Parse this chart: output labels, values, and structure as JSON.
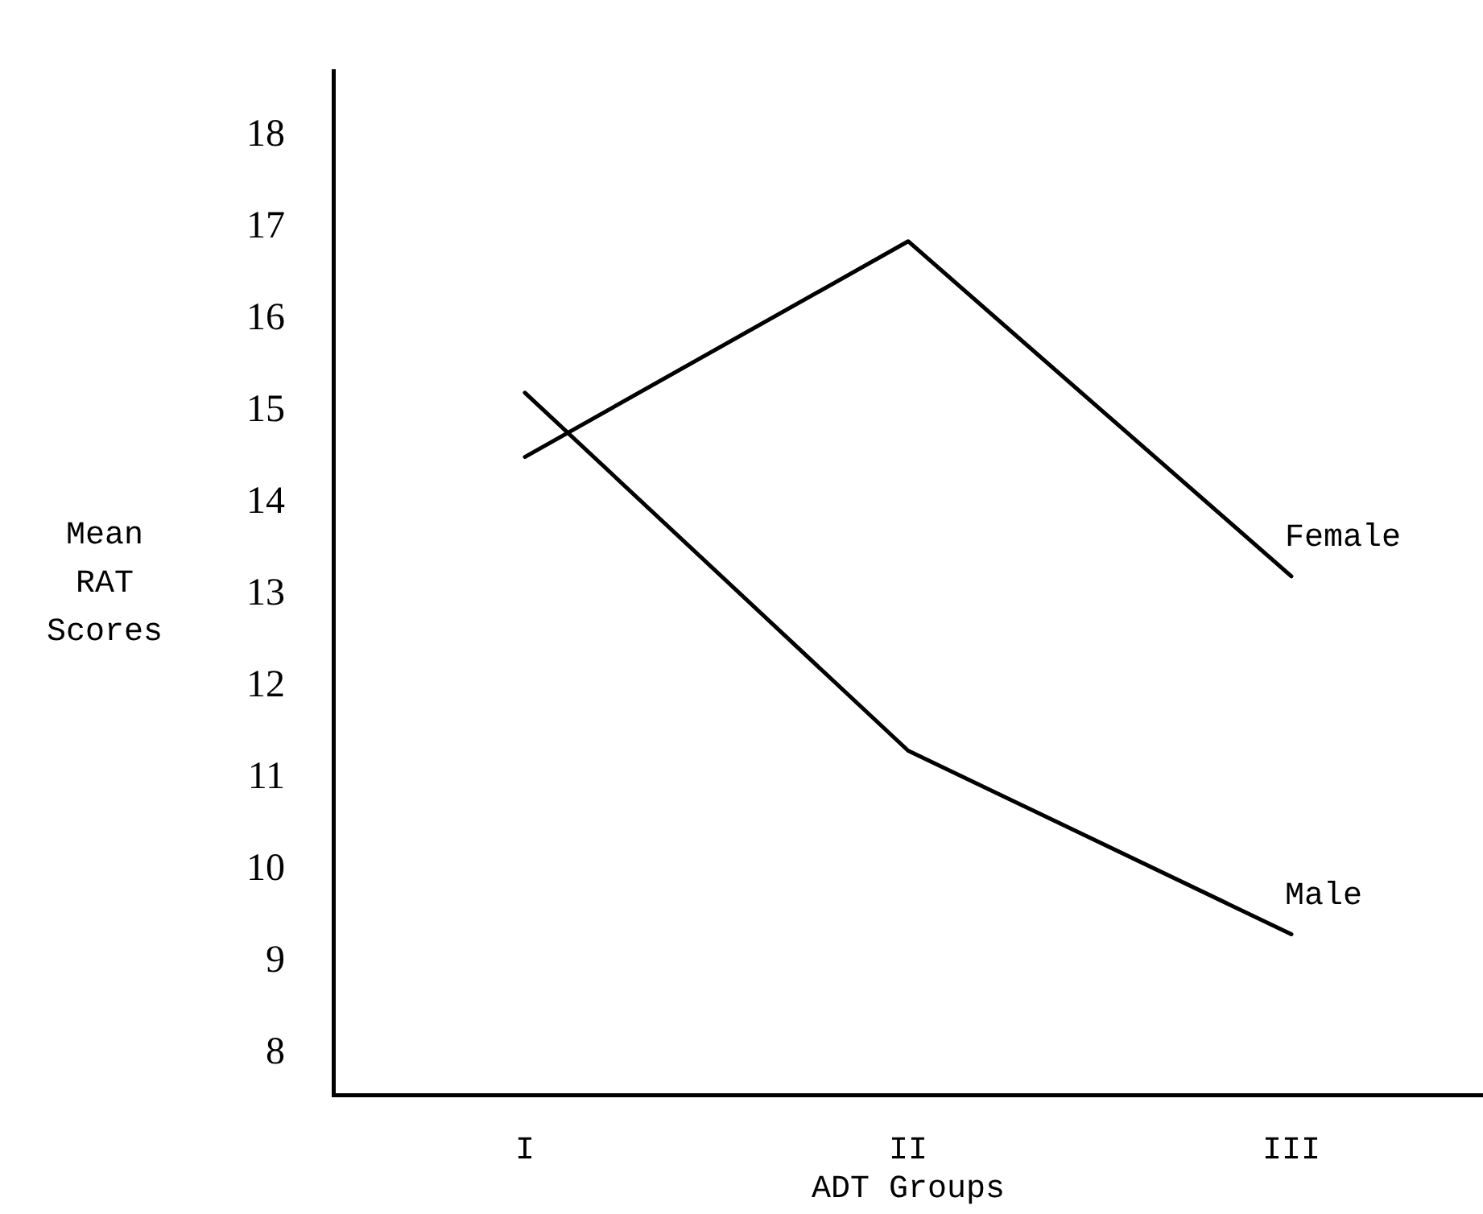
{
  "chart_data": {
    "type": "line",
    "xlabel": "ADT Groups",
    "ylabel": "Mean RAT Scores",
    "categories": [
      "I",
      "II",
      "III"
    ],
    "series": [
      {
        "name": "Female",
        "color": "#000000",
        "values": [
          14.5,
          16.85,
          13.2
        ]
      },
      {
        "name": "Male",
        "color": "#000000",
        "values": [
          15.2,
          11.3,
          9.3
        ]
      }
    ],
    "ylim": [
      7.55,
      18.7
    ],
    "yticks": [
      8,
      9,
      10,
      11,
      12,
      13,
      14,
      15,
      16,
      17,
      18
    ],
    "grid": false,
    "legend": false,
    "marker": "none",
    "line_style": "solid"
  }
}
